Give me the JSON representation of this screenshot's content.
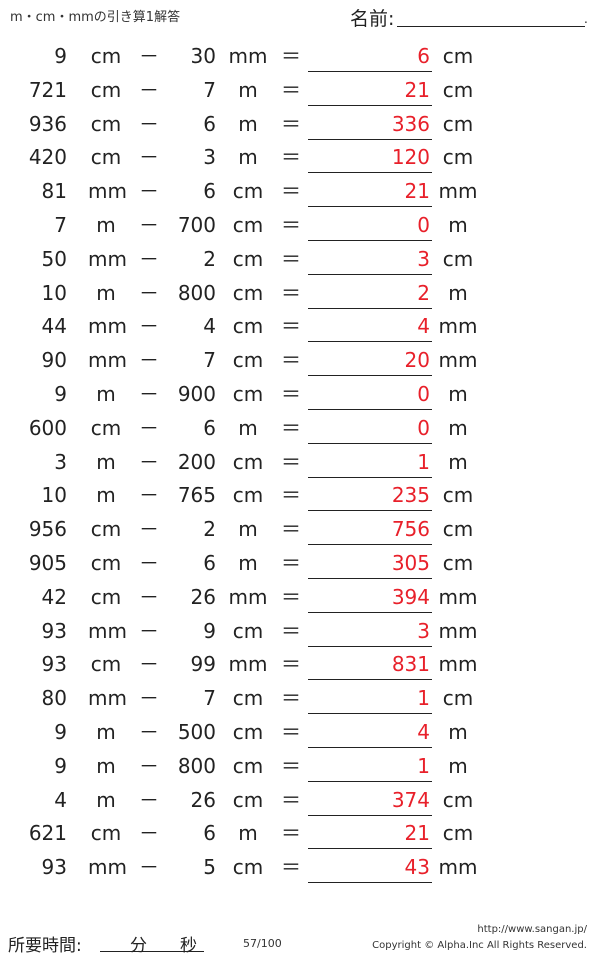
{
  "header": {
    "title": "m・cm・mmの引き算1解答",
    "name_label": "名前:",
    "name_dot": "."
  },
  "operator": "－",
  "equals": "＝",
  "problems": [
    {
      "a": "9",
      "ua": "cm",
      "b": "30",
      "ub": "mm",
      "ans": "6",
      "uans": "cm"
    },
    {
      "a": "721",
      "ua": "cm",
      "b": "7",
      "ub": "m",
      "ans": "21",
      "uans": "cm"
    },
    {
      "a": "936",
      "ua": "cm",
      "b": "6",
      "ub": "m",
      "ans": "336",
      "uans": "cm"
    },
    {
      "a": "420",
      "ua": "cm",
      "b": "3",
      "ub": "m",
      "ans": "120",
      "uans": "cm"
    },
    {
      "a": "81",
      "ua": "mm",
      "b": "6",
      "ub": "cm",
      "ans": "21",
      "uans": "mm"
    },
    {
      "a": "7",
      "ua": "m",
      "b": "700",
      "ub": "cm",
      "ans": "0",
      "uans": "m"
    },
    {
      "a": "50",
      "ua": "mm",
      "b": "2",
      "ub": "cm",
      "ans": "3",
      "uans": "cm"
    },
    {
      "a": "10",
      "ua": "m",
      "b": "800",
      "ub": "cm",
      "ans": "2",
      "uans": "m"
    },
    {
      "a": "44",
      "ua": "mm",
      "b": "4",
      "ub": "cm",
      "ans": "4",
      "uans": "mm"
    },
    {
      "a": "90",
      "ua": "mm",
      "b": "7",
      "ub": "cm",
      "ans": "20",
      "uans": "mm"
    },
    {
      "a": "9",
      "ua": "m",
      "b": "900",
      "ub": "cm",
      "ans": "0",
      "uans": "m"
    },
    {
      "a": "600",
      "ua": "cm",
      "b": "6",
      "ub": "m",
      "ans": "0",
      "uans": "m"
    },
    {
      "a": "3",
      "ua": "m",
      "b": "200",
      "ub": "cm",
      "ans": "1",
      "uans": "m"
    },
    {
      "a": "10",
      "ua": "m",
      "b": "765",
      "ub": "cm",
      "ans": "235",
      "uans": "cm"
    },
    {
      "a": "956",
      "ua": "cm",
      "b": "2",
      "ub": "m",
      "ans": "756",
      "uans": "cm"
    },
    {
      "a": "905",
      "ua": "cm",
      "b": "6",
      "ub": "m",
      "ans": "305",
      "uans": "cm"
    },
    {
      "a": "42",
      "ua": "cm",
      "b": "26",
      "ub": "mm",
      "ans": "394",
      "uans": "mm"
    },
    {
      "a": "93",
      "ua": "mm",
      "b": "9",
      "ub": "cm",
      "ans": "3",
      "uans": "mm"
    },
    {
      "a": "93",
      "ua": "cm",
      "b": "99",
      "ub": "mm",
      "ans": "831",
      "uans": "mm"
    },
    {
      "a": "80",
      "ua": "mm",
      "b": "7",
      "ub": "cm",
      "ans": "1",
      "uans": "cm"
    },
    {
      "a": "9",
      "ua": "m",
      "b": "500",
      "ub": "cm",
      "ans": "4",
      "uans": "m"
    },
    {
      "a": "9",
      "ua": "m",
      "b": "800",
      "ub": "cm",
      "ans": "1",
      "uans": "m"
    },
    {
      "a": "4",
      "ua": "m",
      "b": "26",
      "ub": "cm",
      "ans": "374",
      "uans": "cm"
    },
    {
      "a": "621",
      "ua": "cm",
      "b": "6",
      "ub": "m",
      "ans": "21",
      "uans": "cm"
    },
    {
      "a": "93",
      "ua": "mm",
      "b": "5",
      "ub": "cm",
      "ans": "43",
      "uans": "mm"
    }
  ],
  "footer": {
    "time_label": "所要時間:",
    "minutes": "分",
    "seconds": "秒",
    "page": "57/100",
    "url": "http://www.sangan.jp/",
    "copyright": "Copyright © Alpha.Inc All Rights Reserved."
  },
  "colors": {
    "answer": "#e8202a"
  }
}
